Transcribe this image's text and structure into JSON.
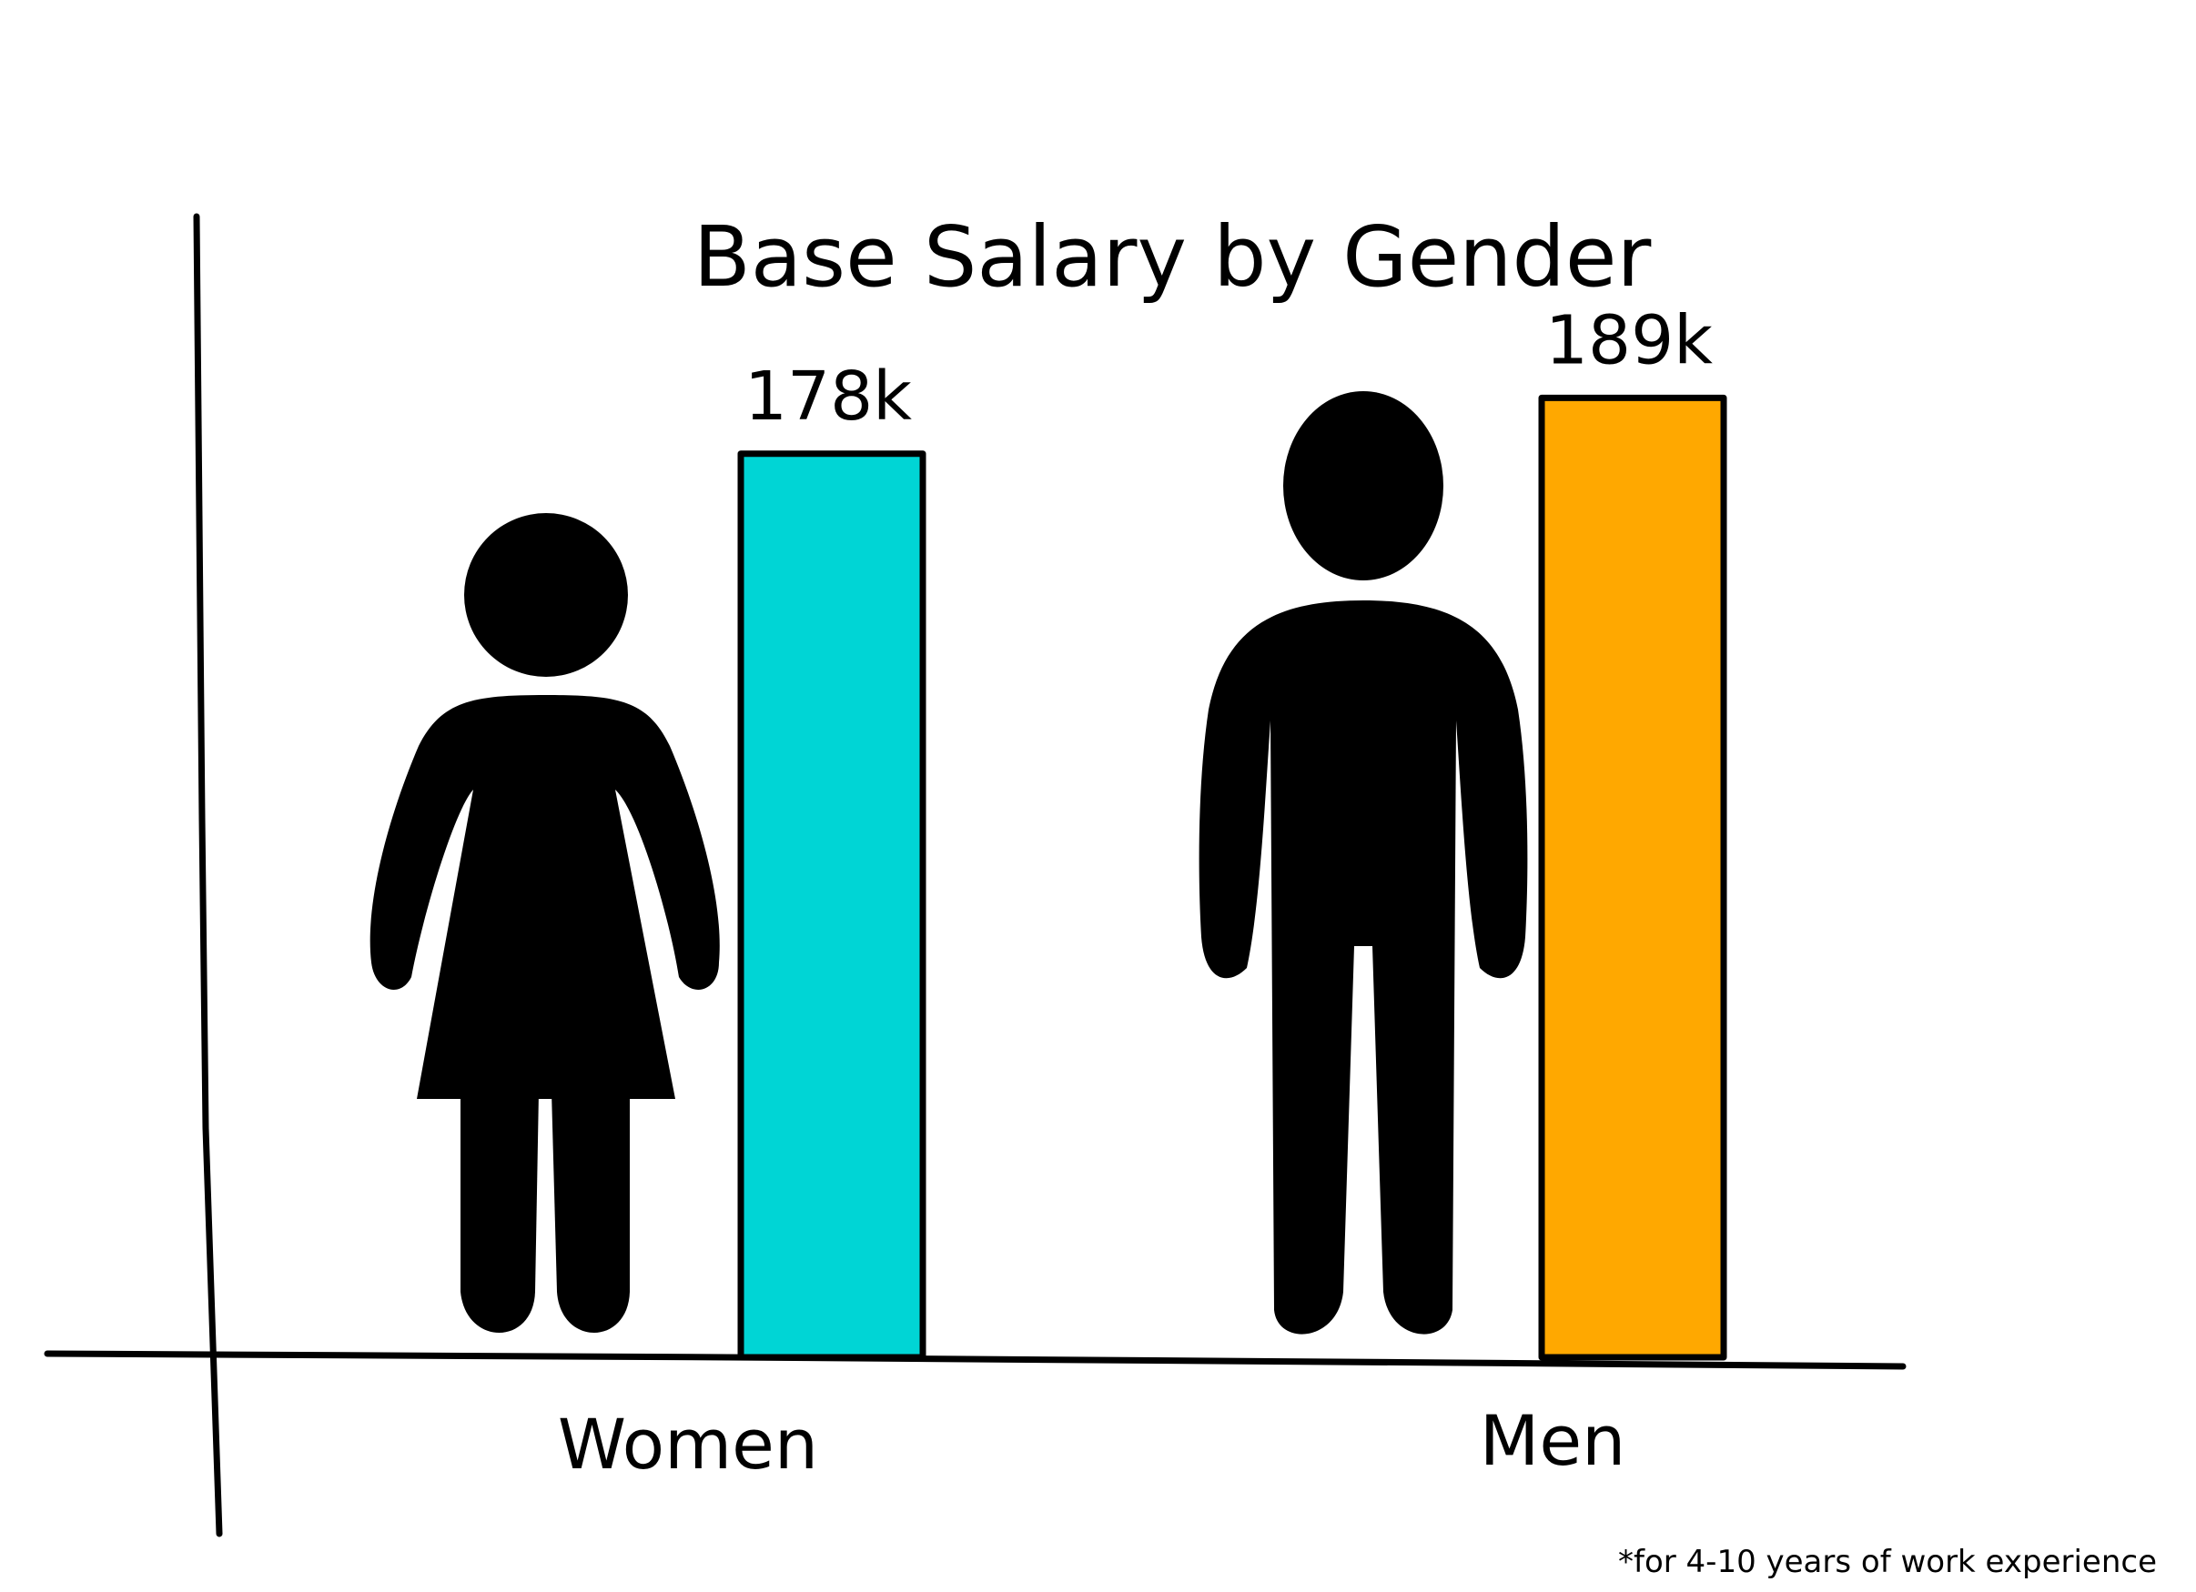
{
  "chart_data": {
    "type": "bar",
    "title": "Base Salary by Gender",
    "categories": [
      "Women",
      "Men"
    ],
    "values": [
      178,
      189
    ],
    "value_labels": [
      "178k",
      "189k"
    ],
    "colors": [
      "#00D5D5",
      "#FFA800"
    ],
    "pictograms": [
      "woman-icon",
      "man-icon"
    ],
    "xlabel": "",
    "ylabel": "",
    "grid": false,
    "legend": "none",
    "footnote": "*for 4-10 years of work experience"
  }
}
